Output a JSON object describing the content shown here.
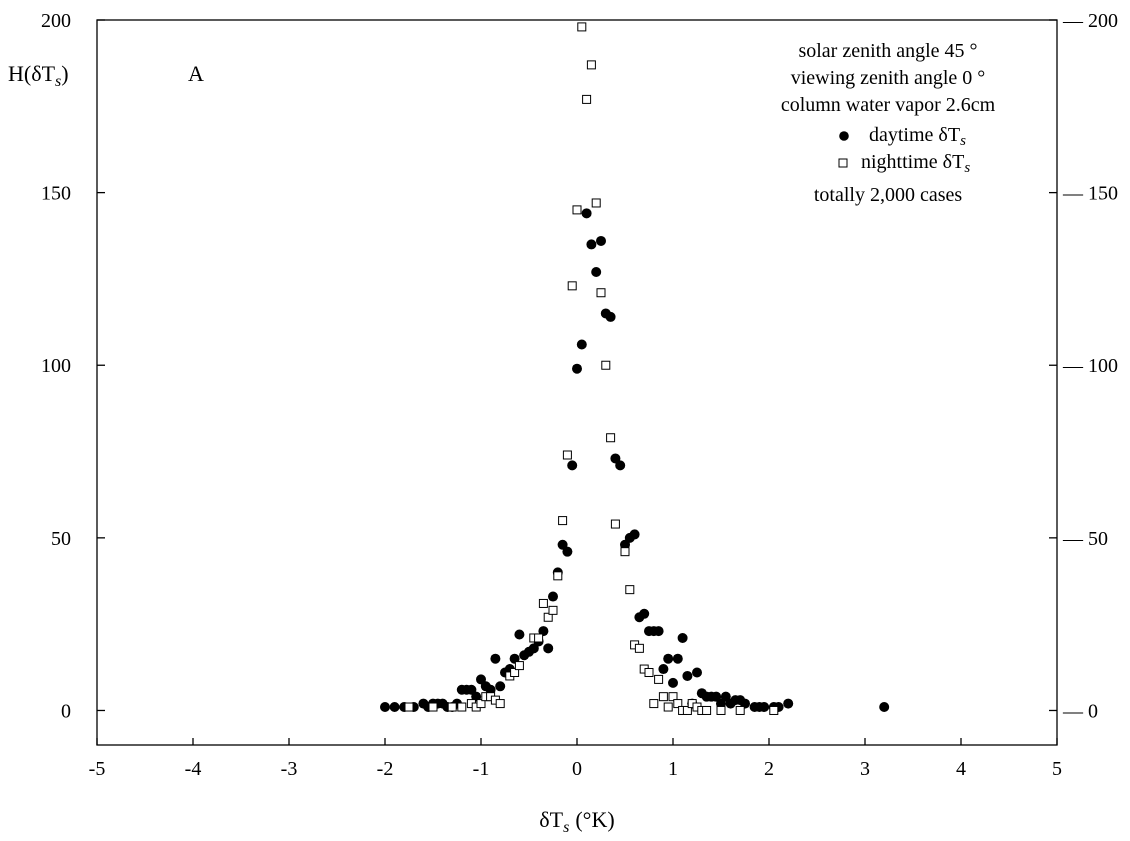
{
  "chart_data": {
    "type": "scatter",
    "title": "",
    "panel_label": "A",
    "xlabel": "δT",
    "xlabel_sub": "s",
    "xlabel_unit": "(°K)",
    "ylabel": "H(δT",
    "ylabel_sub": "s",
    "ylabel_close": ")",
    "xlim": [
      -5,
      5
    ],
    "ylim": [
      -10,
      200
    ],
    "x_ticks": [
      -5,
      -4,
      -3,
      -2,
      -1,
      0,
      1,
      2,
      3,
      4,
      5
    ],
    "x_tick_labels": [
      "-5",
      "-4",
      "-3",
      "-2",
      "-1",
      "0",
      "1",
      "2",
      "3",
      "4",
      "5"
    ],
    "y_ticks": [
      0,
      50,
      100,
      150,
      200
    ],
    "y_tick_labels": [
      "0",
      "50",
      "100",
      "150",
      "200"
    ],
    "grid": false,
    "legend_placement": "top-right",
    "annotations": [
      "solar zenith angle 45 °",
      "viewing zenith angle 0 °",
      "column water vapor 2.6cm",
      "totally 2,000 cases"
    ],
    "series": [
      {
        "name": "daytime δT",
        "name_sub": "s",
        "marker": "filled-circle",
        "color": "#000000",
        "points": [
          [
            -2.0,
            1
          ],
          [
            -1.9,
            1
          ],
          [
            -1.8,
            1
          ],
          [
            -1.7,
            1
          ],
          [
            -1.6,
            2
          ],
          [
            -1.55,
            1
          ],
          [
            -1.5,
            2
          ],
          [
            -1.45,
            2
          ],
          [
            -1.4,
            2
          ],
          [
            -1.35,
            1
          ],
          [
            -1.3,
            1
          ],
          [
            -1.25,
            2
          ],
          [
            -1.2,
            6
          ],
          [
            -1.15,
            6
          ],
          [
            -1.1,
            6
          ],
          [
            -1.05,
            4
          ],
          [
            -1.0,
            9
          ],
          [
            -0.95,
            7
          ],
          [
            -0.9,
            6
          ],
          [
            -0.85,
            15
          ],
          [
            -0.8,
            7
          ],
          [
            -0.75,
            11
          ],
          [
            -0.7,
            12
          ],
          [
            -0.65,
            15
          ],
          [
            -0.6,
            22
          ],
          [
            -0.55,
            16
          ],
          [
            -0.5,
            17
          ],
          [
            -0.45,
            18
          ],
          [
            -0.4,
            20
          ],
          [
            -0.35,
            23
          ],
          [
            -0.3,
            18
          ],
          [
            -0.25,
            33
          ],
          [
            -0.2,
            40
          ],
          [
            -0.15,
            48
          ],
          [
            -0.1,
            46
          ],
          [
            -0.05,
            71
          ],
          [
            0.0,
            99
          ],
          [
            0.05,
            106
          ],
          [
            0.1,
            144
          ],
          [
            0.15,
            135
          ],
          [
            0.2,
            127
          ],
          [
            0.25,
            136
          ],
          [
            0.3,
            115
          ],
          [
            0.35,
            114
          ],
          [
            0.4,
            73
          ],
          [
            0.45,
            71
          ],
          [
            0.5,
            48
          ],
          [
            0.55,
            50
          ],
          [
            0.6,
            51
          ],
          [
            0.65,
            27
          ],
          [
            0.7,
            28
          ],
          [
            0.75,
            23
          ],
          [
            0.8,
            23
          ],
          [
            0.85,
            23
          ],
          [
            0.9,
            12
          ],
          [
            0.95,
            15
          ],
          [
            1.0,
            8
          ],
          [
            1.05,
            15
          ],
          [
            1.1,
            21
          ],
          [
            1.15,
            10
          ],
          [
            1.2,
            2
          ],
          [
            1.25,
            11
          ],
          [
            1.3,
            5
          ],
          [
            1.35,
            4
          ],
          [
            1.4,
            4
          ],
          [
            1.45,
            4
          ],
          [
            1.5,
            2
          ],
          [
            1.55,
            4
          ],
          [
            1.6,
            2
          ],
          [
            1.65,
            3
          ],
          [
            1.7,
            3
          ],
          [
            1.75,
            2
          ],
          [
            1.85,
            1
          ],
          [
            1.9,
            1
          ],
          [
            1.95,
            1
          ],
          [
            2.05,
            1
          ],
          [
            2.1,
            1
          ],
          [
            2.2,
            2
          ],
          [
            3.2,
            1
          ]
        ]
      },
      {
        "name": "nighttime δT",
        "name_sub": "s",
        "marker": "open-square",
        "color": "#000000",
        "points": [
          [
            -1.75,
            1
          ],
          [
            -1.5,
            1
          ],
          [
            -1.3,
            1
          ],
          [
            -1.2,
            1
          ],
          [
            -1.1,
            2
          ],
          [
            -1.05,
            1
          ],
          [
            -1.0,
            2
          ],
          [
            -0.95,
            4
          ],
          [
            -0.9,
            4
          ],
          [
            -0.85,
            3
          ],
          [
            -0.8,
            2
          ],
          [
            -0.7,
            10
          ],
          [
            -0.65,
            11
          ],
          [
            -0.6,
            13
          ],
          [
            -0.45,
            21
          ],
          [
            -0.4,
            21
          ],
          [
            -0.35,
            31
          ],
          [
            -0.3,
            27
          ],
          [
            -0.25,
            29
          ],
          [
            -0.2,
            39
          ],
          [
            -0.15,
            55
          ],
          [
            -0.1,
            74
          ],
          [
            -0.05,
            123
          ],
          [
            0.0,
            145
          ],
          [
            0.05,
            198
          ],
          [
            0.1,
            177
          ],
          [
            0.15,
            187
          ],
          [
            0.2,
            147
          ],
          [
            0.25,
            121
          ],
          [
            0.3,
            100
          ],
          [
            0.35,
            79
          ],
          [
            0.4,
            54
          ],
          [
            0.5,
            46
          ],
          [
            0.55,
            35
          ],
          [
            0.6,
            19
          ],
          [
            0.65,
            18
          ],
          [
            0.7,
            12
          ],
          [
            0.75,
            11
          ],
          [
            0.8,
            2
          ],
          [
            0.85,
            9
          ],
          [
            0.9,
            4
          ],
          [
            0.95,
            1
          ],
          [
            1.0,
            4
          ],
          [
            1.05,
            2
          ],
          [
            1.1,
            0
          ],
          [
            1.15,
            0
          ],
          [
            1.2,
            2
          ],
          [
            1.25,
            1
          ],
          [
            1.3,
            0
          ],
          [
            1.35,
            0
          ],
          [
            1.5,
            0
          ],
          [
            1.7,
            0
          ],
          [
            2.05,
            0
          ]
        ]
      }
    ]
  }
}
